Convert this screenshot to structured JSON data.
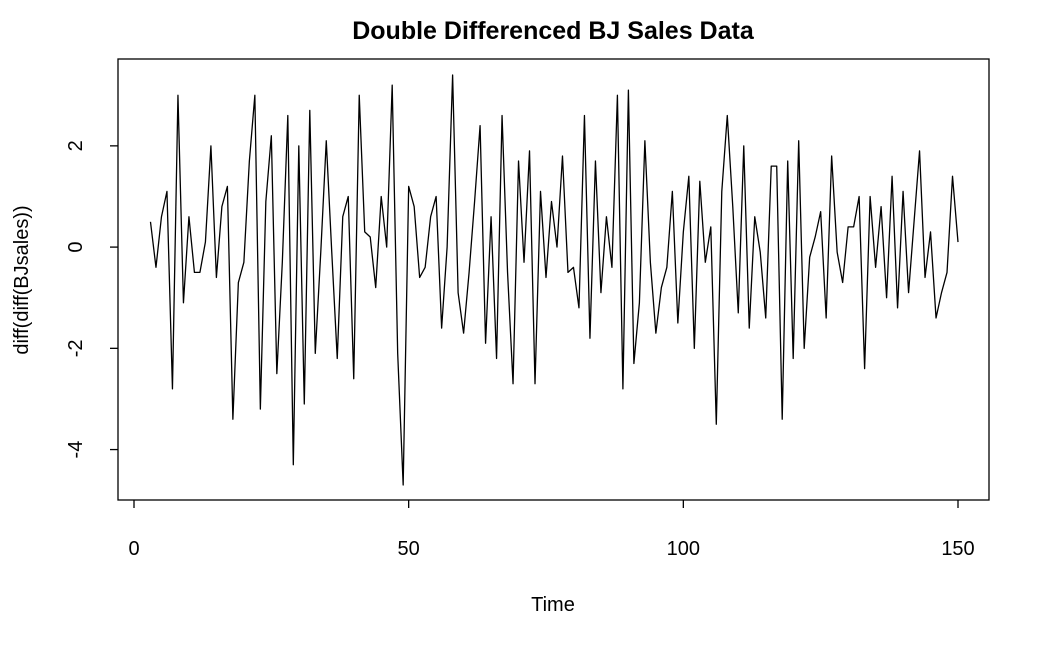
{
  "chart_data": {
    "type": "line",
    "title": "Double Differenced BJ Sales Data",
    "xlabel": "Time",
    "ylabel": "diff(diff(BJsales))",
    "xlim": [
      0,
      150
    ],
    "ylim": [
      -4.7,
      3.4
    ],
    "xticks": [
      0,
      50,
      100,
      150
    ],
    "yticks": [
      -4,
      -2,
      0,
      2
    ],
    "x_start": 3,
    "grid": false,
    "legend": "none",
    "series": [
      {
        "color": "#000000",
        "values": [
          0.5,
          -0.4,
          0.6,
          1.1,
          -2.8,
          3.0,
          -1.1,
          0.6,
          -0.5,
          -0.5,
          0.1,
          2.0,
          -0.6,
          0.8,
          1.2,
          -3.4,
          -0.7,
          -0.3,
          1.7,
          3.0,
          -3.2,
          0.9,
          2.2,
          -2.5,
          -0.3,
          2.6,
          -4.3,
          2.0,
          -3.1,
          2.7,
          -2.1,
          -0.1,
          2.1,
          -0.1,
          -2.2,
          0.6,
          1.0,
          -2.6,
          3.0,
          0.3,
          0.2,
          -0.8,
          1.0,
          0.0,
          3.2,
          -2.1,
          -4.7,
          1.2,
          0.8,
          -0.6,
          -0.4,
          0.6,
          1.0,
          -1.6,
          0.0,
          3.4,
          -0.9,
          -1.7,
          -0.5,
          0.9,
          2.4,
          -1.9,
          0.6,
          -2.2,
          2.6,
          -0.5,
          -2.7,
          1.7,
          -0.3,
          1.9,
          -2.7,
          1.1,
          -0.6,
          0.9,
          0.0,
          1.8,
          -0.5,
          -0.4,
          -1.2,
          2.6,
          -1.8,
          1.7,
          -0.9,
          0.6,
          -0.4,
          3.0,
          -2.8,
          3.1,
          -2.3,
          -1.1,
          2.1,
          -0.3,
          -1.7,
          -0.8,
          -0.4,
          1.1,
          -1.5,
          0.3,
          1.4,
          -2.0,
          1.3,
          -0.3,
          0.4,
          -3.5,
          1.1,
          2.6,
          0.8,
          -1.3,
          2.0,
          -1.6,
          0.6,
          -0.1,
          -1.4,
          1.6,
          1.6,
          -3.4,
          1.7,
          -2.2,
          2.1,
          -2.0,
          -0.2,
          0.2,
          0.7,
          -1.4,
          1.8,
          -0.1,
          -0.7,
          0.4,
          0.4,
          1.0,
          -2.4,
          1.0,
          -0.4,
          0.8,
          -1.0,
          1.4,
          -1.2,
          1.1,
          -0.9,
          0.5,
          1.9,
          -0.6,
          0.3,
          -1.4,
          -0.9,
          -0.5,
          1.4,
          0.1
        ]
      }
    ]
  }
}
